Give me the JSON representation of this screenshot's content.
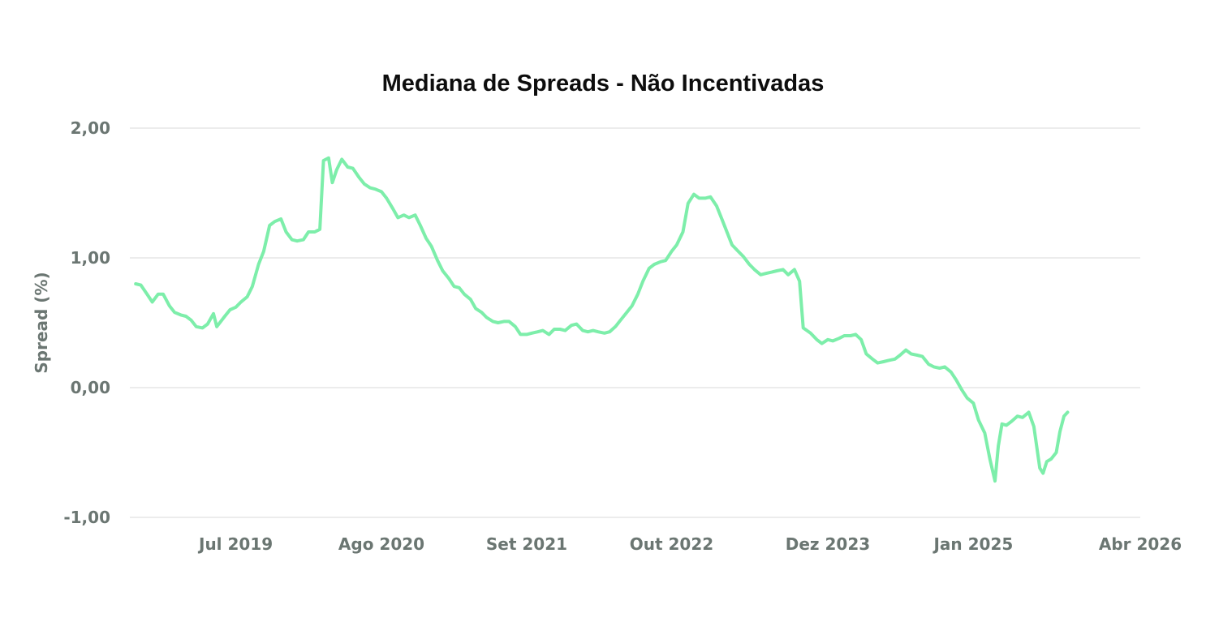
{
  "chart_data": {
    "type": "line",
    "title": "Mediana de Spreads - Não Incentivadas",
    "ylabel": "Spread (%)",
    "xlabel": "",
    "ylim": [
      -1.0,
      2.0
    ],
    "xlim": [
      "2018-09-15",
      "2026-04-01"
    ],
    "yticks": [
      {
        "value": 2.0,
        "label": "2,00"
      },
      {
        "value": 1.0,
        "label": "1,00"
      },
      {
        "value": 0.0,
        "label": "0,00"
      },
      {
        "value": -1.0,
        "label": "-1,00"
      }
    ],
    "xticks": [
      {
        "date": "2019-07-01",
        "label": "Jul 2019"
      },
      {
        "date": "2020-08-01",
        "label": "Ago 2020"
      },
      {
        "date": "2021-09-01",
        "label": "Set 2021"
      },
      {
        "date": "2022-10-01",
        "label": "Out 2022"
      },
      {
        "date": "2023-12-01",
        "label": "Dez 2023"
      },
      {
        "date": "2025-01-01",
        "label": "Jan 2025"
      },
      {
        "date": "2026-04-01",
        "label": "Abr 2026"
      }
    ],
    "grid": true,
    "legend": "none",
    "series": [
      {
        "color": "#7deeaa",
        "points": [
          [
            "2018-10-01",
            0.8
          ],
          [
            "2018-10-15",
            0.79
          ],
          [
            "2018-11-01",
            0.72
          ],
          [
            "2018-11-15",
            0.66
          ],
          [
            "2018-12-01",
            0.72
          ],
          [
            "2018-12-15",
            0.72
          ],
          [
            "2019-01-01",
            0.63
          ],
          [
            "2019-01-15",
            0.58
          ],
          [
            "2019-02-01",
            0.56
          ],
          [
            "2019-02-15",
            0.55
          ],
          [
            "2019-03-01",
            0.52
          ],
          [
            "2019-03-15",
            0.47
          ],
          [
            "2019-04-01",
            0.46
          ],
          [
            "2019-04-15",
            0.49
          ],
          [
            "2019-05-01",
            0.57
          ],
          [
            "2019-05-10",
            0.47
          ],
          [
            "2019-06-01",
            0.55
          ],
          [
            "2019-06-15",
            0.6
          ],
          [
            "2019-07-01",
            0.62
          ],
          [
            "2019-07-15",
            0.66
          ],
          [
            "2019-08-01",
            0.7
          ],
          [
            "2019-08-15",
            0.78
          ],
          [
            "2019-09-01",
            0.95
          ],
          [
            "2019-09-15",
            1.05
          ],
          [
            "2019-10-01",
            1.25
          ],
          [
            "2019-10-15",
            1.28
          ],
          [
            "2019-11-01",
            1.3
          ],
          [
            "2019-11-15",
            1.2
          ],
          [
            "2019-12-01",
            1.14
          ],
          [
            "2019-12-15",
            1.13
          ],
          [
            "2020-01-01",
            1.14
          ],
          [
            "2020-01-15",
            1.2
          ],
          [
            "2020-02-01",
            1.2
          ],
          [
            "2020-02-15",
            1.22
          ],
          [
            "2020-02-25",
            1.75
          ],
          [
            "2020-03-10",
            1.77
          ],
          [
            "2020-03-20",
            1.58
          ],
          [
            "2020-04-01",
            1.68
          ],
          [
            "2020-04-15",
            1.76
          ],
          [
            "2020-05-01",
            1.7
          ],
          [
            "2020-05-15",
            1.69
          ],
          [
            "2020-06-01",
            1.62
          ],
          [
            "2020-06-15",
            1.57
          ],
          [
            "2020-07-01",
            1.54
          ],
          [
            "2020-07-15",
            1.53
          ],
          [
            "2020-08-01",
            1.51
          ],
          [
            "2020-08-15",
            1.46
          ],
          [
            "2020-09-01",
            1.38
          ],
          [
            "2020-09-15",
            1.31
          ],
          [
            "2020-10-01",
            1.33
          ],
          [
            "2020-10-15",
            1.31
          ],
          [
            "2020-11-01",
            1.33
          ],
          [
            "2020-11-15",
            1.25
          ],
          [
            "2020-12-01",
            1.15
          ],
          [
            "2020-12-15",
            1.09
          ],
          [
            "2021-01-01",
            0.98
          ],
          [
            "2021-01-15",
            0.9
          ],
          [
            "2021-02-01",
            0.84
          ],
          [
            "2021-02-15",
            0.78
          ],
          [
            "2021-03-01",
            0.77
          ],
          [
            "2021-03-15",
            0.72
          ],
          [
            "2021-04-01",
            0.68
          ],
          [
            "2021-04-15",
            0.61
          ],
          [
            "2021-05-01",
            0.58
          ],
          [
            "2021-05-15",
            0.54
          ],
          [
            "2021-06-01",
            0.51
          ],
          [
            "2021-06-15",
            0.5
          ],
          [
            "2021-07-01",
            0.51
          ],
          [
            "2021-07-15",
            0.51
          ],
          [
            "2021-08-01",
            0.47
          ],
          [
            "2021-08-15",
            0.41
          ],
          [
            "2021-09-01",
            0.41
          ],
          [
            "2021-09-15",
            0.42
          ],
          [
            "2021-10-01",
            0.43
          ],
          [
            "2021-10-15",
            0.44
          ],
          [
            "2021-11-01",
            0.41
          ],
          [
            "2021-11-15",
            0.45
          ],
          [
            "2021-12-01",
            0.45
          ],
          [
            "2021-12-15",
            0.44
          ],
          [
            "2022-01-01",
            0.48
          ],
          [
            "2022-01-15",
            0.49
          ],
          [
            "2022-02-01",
            0.44
          ],
          [
            "2022-02-15",
            0.43
          ],
          [
            "2022-03-01",
            0.44
          ],
          [
            "2022-03-15",
            0.43
          ],
          [
            "2022-04-01",
            0.42
          ],
          [
            "2022-04-15",
            0.43
          ],
          [
            "2022-05-01",
            0.47
          ],
          [
            "2022-05-15",
            0.52
          ],
          [
            "2022-06-01",
            0.58
          ],
          [
            "2022-06-15",
            0.63
          ],
          [
            "2022-07-01",
            0.72
          ],
          [
            "2022-07-15",
            0.82
          ],
          [
            "2022-08-01",
            0.92
          ],
          [
            "2022-08-15",
            0.95
          ],
          [
            "2022-09-01",
            0.97
          ],
          [
            "2022-09-15",
            0.98
          ],
          [
            "2022-10-01",
            1.05
          ],
          [
            "2022-10-15",
            1.1
          ],
          [
            "2022-11-01",
            1.2
          ],
          [
            "2022-11-15",
            1.42
          ],
          [
            "2022-12-01",
            1.49
          ],
          [
            "2022-12-15",
            1.46
          ],
          [
            "2023-01-01",
            1.46
          ],
          [
            "2023-01-15",
            1.47
          ],
          [
            "2023-02-01",
            1.4
          ],
          [
            "2023-02-15",
            1.3
          ],
          [
            "2023-03-01",
            1.2
          ],
          [
            "2023-03-15",
            1.1
          ],
          [
            "2023-04-01",
            1.05
          ],
          [
            "2023-04-15",
            1.01
          ],
          [
            "2023-05-01",
            0.95
          ],
          [
            "2023-05-15",
            0.91
          ],
          [
            "2023-06-01",
            0.87
          ],
          [
            "2023-06-15",
            0.88
          ],
          [
            "2023-07-01",
            0.89
          ],
          [
            "2023-07-15",
            0.9
          ],
          [
            "2023-08-01",
            0.91
          ],
          [
            "2023-08-15",
            0.87
          ],
          [
            "2023-09-01",
            0.91
          ],
          [
            "2023-09-15",
            0.82
          ],
          [
            "2023-09-25",
            0.46
          ],
          [
            "2023-10-15",
            0.42
          ],
          [
            "2023-11-01",
            0.37
          ],
          [
            "2023-11-15",
            0.34
          ],
          [
            "2023-12-01",
            0.37
          ],
          [
            "2023-12-15",
            0.36
          ],
          [
            "2024-01-01",
            0.38
          ],
          [
            "2024-01-15",
            0.4
          ],
          [
            "2024-02-01",
            0.4
          ],
          [
            "2024-02-15",
            0.41
          ],
          [
            "2024-03-01",
            0.37
          ],
          [
            "2024-03-15",
            0.26
          ],
          [
            "2024-04-01",
            0.22
          ],
          [
            "2024-04-15",
            0.19
          ],
          [
            "2024-05-01",
            0.2
          ],
          [
            "2024-05-15",
            0.21
          ],
          [
            "2024-06-01",
            0.22
          ],
          [
            "2024-06-15",
            0.25
          ],
          [
            "2024-07-01",
            0.29
          ],
          [
            "2024-07-15",
            0.26
          ],
          [
            "2024-08-01",
            0.25
          ],
          [
            "2024-08-15",
            0.24
          ],
          [
            "2024-09-01",
            0.18
          ],
          [
            "2024-09-15",
            0.16
          ],
          [
            "2024-10-01",
            0.15
          ],
          [
            "2024-10-15",
            0.16
          ],
          [
            "2024-11-01",
            0.12
          ],
          [
            "2024-11-15",
            0.06
          ],
          [
            "2024-12-01",
            -0.02
          ],
          [
            "2024-12-15",
            -0.08
          ],
          [
            "2025-01-01",
            -0.12
          ],
          [
            "2025-01-15",
            -0.25
          ],
          [
            "2025-02-01",
            -0.35
          ],
          [
            "2025-02-15",
            -0.55
          ],
          [
            "2025-03-01",
            -0.72
          ],
          [
            "2025-03-10",
            -0.45
          ],
          [
            "2025-03-20",
            -0.28
          ],
          [
            "2025-04-01",
            -0.29
          ],
          [
            "2025-04-15",
            -0.26
          ],
          [
            "2025-05-01",
            -0.22
          ],
          [
            "2025-05-15",
            -0.23
          ],
          [
            "2025-06-01",
            -0.19
          ],
          [
            "2025-06-15",
            -0.3
          ],
          [
            "2025-07-01",
            -0.62
          ],
          [
            "2025-07-10",
            -0.66
          ],
          [
            "2025-07-20",
            -0.57
          ],
          [
            "2025-08-01",
            -0.55
          ],
          [
            "2025-08-15",
            -0.5
          ],
          [
            "2025-08-25",
            -0.34
          ],
          [
            "2025-09-05",
            -0.22
          ],
          [
            "2025-09-15",
            -0.19
          ]
        ]
      }
    ]
  }
}
